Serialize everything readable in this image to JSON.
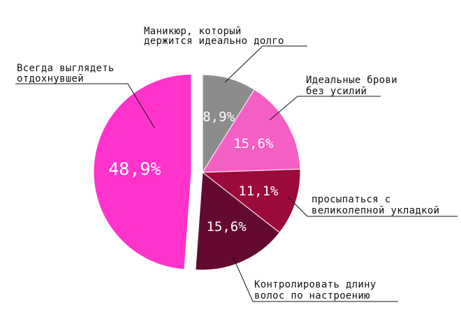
{
  "chart_data": {
    "type": "pie",
    "slices": [
      {
        "label": [
          "Маникюр, который",
          "держится идеально долго"
        ],
        "value": 8.9,
        "value_label": "8,9%",
        "color": "#8c8c8c"
      },
      {
        "label": [
          "Идеальные брови",
          "без усилий"
        ],
        "value": 15.6,
        "value_label": "15,6%",
        "color": "#f45fc3"
      },
      {
        "label": [
          "просыпаться с",
          "великолепной укладкой"
        ],
        "value": 11.1,
        "value_label": "11,1%",
        "color": "#9c0a3c"
      },
      {
        "label": [
          "Контролировать длину",
          "волос по настроению"
        ],
        "value": 15.6,
        "value_label": "15,6%",
        "color": "#640a30"
      },
      {
        "label": [
          "Всегда выглядеть",
          "отдохнувшей"
        ],
        "value": 48.9,
        "value_label": "48,9%",
        "color": "#ff33cc",
        "exploded": true
      }
    ]
  }
}
